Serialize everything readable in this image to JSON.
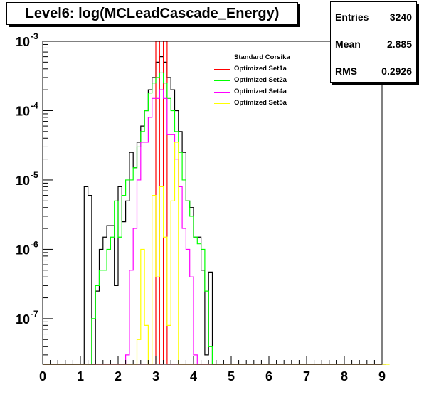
{
  "title": "Level6:  log(MCLeadCascade_Energy)",
  "stats": {
    "entries_label": "Entries",
    "entries_value": "3240",
    "mean_label": "Mean",
    "mean_value": "2.885",
    "rms_label": "RMS",
    "rms_value": "0.2926"
  },
  "chart_data": {
    "type": "line",
    "subtype": "step-histogram",
    "title": "Level6:  log(MCLeadCascade_Energy)",
    "xlabel": "",
    "ylabel": "",
    "xlim": [
      0,
      9
    ],
    "ylim": [
      2.2e-08,
      0.001
    ],
    "y_scale": "log",
    "grid": false,
    "legend_position": "top-center",
    "x_ticks": [
      "0",
      "1",
      "2",
      "3",
      "4",
      "5",
      "6",
      "7",
      "8",
      "9"
    ],
    "y_ticks": [
      {
        "value": 0.001,
        "base": "10",
        "exp": "-3"
      },
      {
        "value": 0.0001,
        "base": "10",
        "exp": "-4"
      },
      {
        "value": 1e-05,
        "base": "10",
        "exp": "-5"
      },
      {
        "value": 1e-06,
        "base": "10",
        "exp": "-6"
      },
      {
        "value": 1e-07,
        "base": "10",
        "exp": "-7"
      }
    ],
    "bin_width": 0.1,
    "x_start": 0.0,
    "series": [
      {
        "name": "Standard Corsika",
        "color": "#000000",
        "values": [
          0,
          0,
          0,
          0,
          0,
          0,
          0,
          0,
          0,
          0,
          0,
          8e-06,
          6e-06,
          0,
          2.5e-07,
          1e-06,
          1.5e-06,
          2.2e-06,
          2.2e-06,
          3e-07,
          8e-06,
          2.5e-06,
          5e-06,
          2.5e-05,
          1.5e-05,
          3.5e-05,
          6e-05,
          0.0001,
          0.0002,
          0.0003,
          0.0005,
          0.0006,
          0.0005,
          0.0003,
          0.0002,
          0.0001,
          5e-05,
          2.5e-05,
          5e-06,
          4e-06,
          1.5e-06,
          1.5e-06,
          5e-07,
          3e-08,
          4.7e-07,
          0,
          0,
          0,
          0,
          0,
          0,
          0,
          0,
          0,
          0,
          0,
          0,
          0,
          0,
          0,
          0,
          0,
          0,
          0,
          0,
          0,
          0,
          0,
          0,
          0,
          0,
          0,
          0,
          0,
          0,
          0,
          0,
          0,
          0,
          0,
          0,
          0,
          0,
          0,
          0,
          0,
          0,
          0,
          0,
          0
        ]
      },
      {
        "name": "Optimized Set1a",
        "color": "#ff0000",
        "values": [
          0,
          0,
          0,
          0,
          0,
          0,
          0,
          0,
          0,
          0,
          0,
          0,
          0,
          0,
          0,
          0,
          0,
          0,
          0,
          0,
          0,
          0,
          0,
          0,
          0,
          0,
          0,
          0,
          0,
          0,
          0.001,
          0,
          0.001,
          0,
          0,
          0,
          0,
          0,
          0,
          0,
          0,
          0,
          0,
          0,
          0,
          0,
          0,
          0,
          0,
          0,
          0,
          0,
          0,
          0,
          0,
          0,
          0,
          0,
          0,
          0,
          0,
          0,
          0,
          0,
          0,
          0,
          0,
          0,
          0,
          0,
          0,
          0,
          0,
          0,
          0,
          0,
          0,
          0,
          0,
          0,
          0,
          0,
          0,
          0,
          0,
          0,
          0,
          0,
          0,
          0
        ]
      },
      {
        "name": "Optimized Set2a",
        "color": "#00ff00",
        "values": [
          0,
          0,
          0,
          0,
          0,
          0,
          0,
          0,
          0,
          0,
          0,
          0,
          0,
          1e-07,
          3e-07,
          5e-07,
          5e-07,
          1e-06,
          1.5e-06,
          5e-06,
          1.5e-06,
          6e-06,
          1e-05,
          1e-05,
          1.5e-05,
          3e-05,
          5e-05,
          0.0001,
          0.00018,
          0.00025,
          0.0003,
          0.00035,
          0.00025,
          0.00015,
          0.0001,
          5e-05,
          2.5e-05,
          1e-05,
          5e-06,
          3e-06,
          1.5e-06,
          1.2e-06,
          1e-06,
          2.5e-07,
          4e-08,
          0,
          0,
          0,
          0,
          0,
          0,
          0,
          0,
          0,
          0,
          0,
          0,
          0,
          0,
          0,
          0,
          0,
          0,
          0,
          0,
          0,
          0,
          0,
          0,
          0,
          0,
          0,
          0,
          0,
          0,
          0,
          0,
          0,
          0,
          0,
          0,
          0,
          0,
          0,
          0,
          0,
          0,
          0,
          0,
          0,
          0
        ]
      },
      {
        "name": "Optimized Set4a",
        "color": "#ff00ff",
        "values": [
          0,
          0,
          0,
          0,
          0,
          0,
          0,
          0,
          0,
          0,
          0,
          0,
          0,
          0,
          0,
          0,
          0,
          0,
          0,
          0,
          0,
          0,
          3e-08,
          5e-07,
          2e-06,
          1e-05,
          3.5e-05,
          3.5e-05,
          8e-05,
          0.00015,
          0.00015,
          0.0002,
          0.00015,
          4.5e-05,
          4.5e-05,
          2e-05,
          8e-06,
          2e-06,
          1e-06,
          4e-07,
          3e-08,
          0,
          0,
          0,
          0,
          0,
          0,
          0,
          0,
          0,
          0,
          0,
          0,
          0,
          0,
          0,
          0,
          0,
          0,
          0,
          0,
          0,
          0,
          0,
          0,
          0,
          0,
          0,
          0,
          0,
          0,
          0,
          0,
          0,
          0,
          0,
          0,
          0,
          0,
          0,
          0,
          0,
          0,
          0,
          0,
          0,
          0,
          0,
          0,
          0,
          0
        ]
      },
      {
        "name": "Optimized Set5a",
        "color": "#ffff00",
        "values": [
          0,
          0,
          0,
          0,
          0,
          0,
          0,
          0,
          0,
          0,
          0,
          0,
          0,
          0,
          0,
          0,
          0,
          0,
          0,
          0,
          0,
          0,
          0,
          0,
          0,
          5e-08,
          1e-06,
          8e-08,
          0,
          6e-06,
          4e-07,
          8e-06,
          1.5e-06,
          8e-08,
          5e-06,
          3.5e-05,
          0,
          0,
          0,
          0,
          0,
          0,
          0,
          0,
          0,
          0,
          0,
          0,
          0,
          0,
          0,
          0,
          0,
          0,
          0,
          0,
          0,
          0,
          0,
          0,
          0,
          0,
          0,
          0,
          0,
          0,
          0,
          0,
          0,
          0,
          0,
          0,
          0,
          0,
          0,
          0,
          0,
          0,
          0,
          0,
          0,
          0,
          0,
          0,
          0,
          0,
          0,
          0,
          0,
          0,
          0,
          0
        ]
      }
    ]
  }
}
